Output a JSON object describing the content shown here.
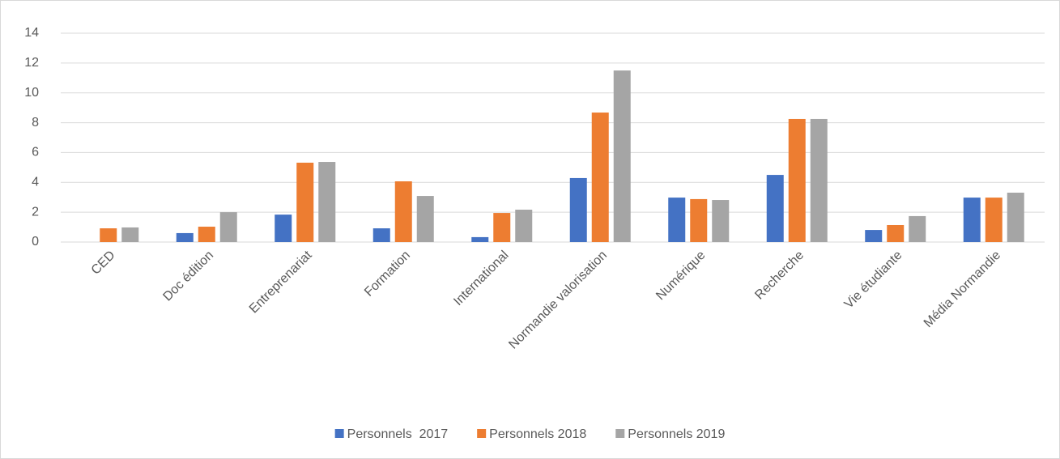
{
  "chart_data": {
    "type": "bar",
    "categories": [
      "CED",
      "Doc édition",
      "Entreprenariat",
      "Formation",
      "International",
      "Normandie valorisation",
      "Numérique",
      "Recherche",
      "Vie étudiante",
      "Média Normandie"
    ],
    "series": [
      {
        "name": "Personnels  2017",
        "color": "#4472c4",
        "values": [
          0,
          0.6,
          1.84,
          0.92,
          0.33,
          4.29,
          2.98,
          4.5,
          0.81,
          2.98
        ]
      },
      {
        "name": "Personnels 2018",
        "color": "#ed7d31",
        "values": [
          0.92,
          1.03,
          5.32,
          4.07,
          1.95,
          8.68,
          2.88,
          8.25,
          1.14,
          2.98
        ]
      },
      {
        "name": "Personnels 2019",
        "color": "#a5a5a5",
        "values": [
          0.98,
          2.0,
          5.37,
          3.09,
          2.17,
          11.5,
          2.82,
          8.25,
          1.74,
          3.31
        ]
      }
    ],
    "ylim": [
      0,
      14
    ],
    "yticks": [
      0,
      2,
      4,
      6,
      8,
      10,
      12,
      14
    ],
    "grid": true,
    "legend": "bottom"
  }
}
